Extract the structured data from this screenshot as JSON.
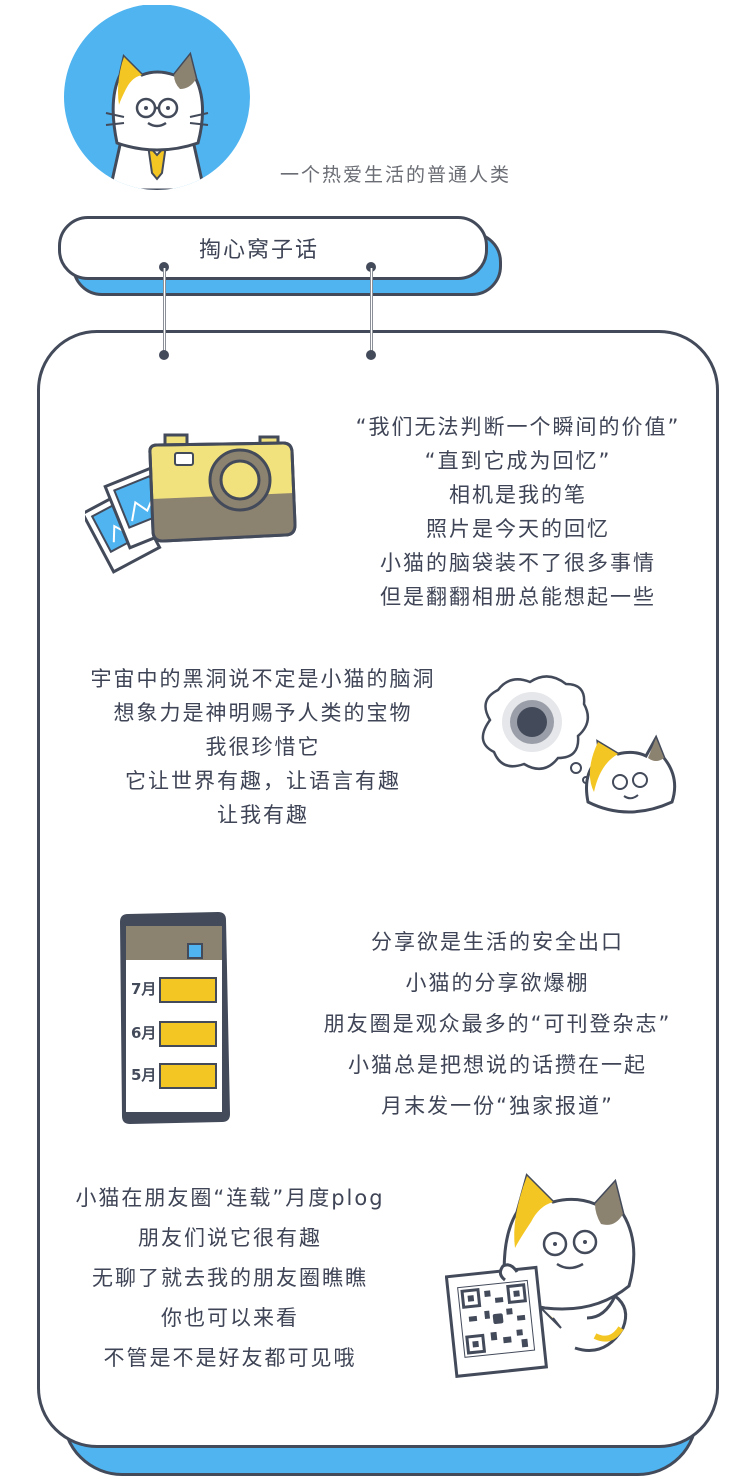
{
  "header": {
    "tagline": "一个热爱生活的普通人类",
    "title": "掏心窝子话"
  },
  "sections": [
    {
      "lines": [
        "“我们无法判断一个瞬间的价值”",
        "“直到它成为回忆”",
        "相机是我的笔",
        "照片是今天的回忆",
        "小猫的脑袋装不了很多事情",
        "但是翻翻相册总能想起一些"
      ]
    },
    {
      "lines": [
        "宇宙中的黑洞说不定是小猫的脑洞",
        "想象力是神明赐予人类的宝物",
        "我很珍惜它",
        "它让世界有趣，让语言有趣",
        "让我有趣"
      ]
    },
    {
      "lines": [
        "分享欲是生活的安全出口",
        "小猫的分享欲爆棚",
        "朋友圈是观众最多的“可刊登杂志”",
        "小猫总是把想说的话攒在一起",
        "月末发一份“独家报道”"
      ]
    },
    {
      "lines": [
        "小猫在朋友圈“连载”月度plog",
        "朋友们说它很有趣",
        "无聊了就去我的朋友圈瞧瞧",
        "你也可以来看",
        "不管是不是好友都可见哦"
      ]
    }
  ],
  "phone_months": [
    "7月",
    "6月",
    "5月"
  ],
  "colors": {
    "accent_blue": "#4fb4f0",
    "outline": "#434a5a",
    "cat_yellow": "#f4c623",
    "camera_yellow": "#f2e27e",
    "camera_brown": "#8c8270"
  }
}
